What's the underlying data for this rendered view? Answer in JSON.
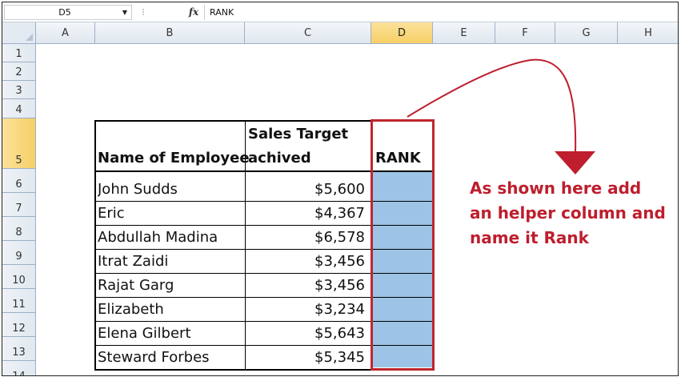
{
  "formula_bar": {
    "cell_reference": "D5",
    "fx_label": "fx",
    "formula": "RANK"
  },
  "columns": [
    "A",
    "B",
    "C",
    "D",
    "E",
    "F",
    "G",
    "H"
  ],
  "selected_column": "D",
  "rows": [
    "1",
    "2",
    "3",
    "4",
    "5",
    "6",
    "7",
    "8",
    "9",
    "10",
    "11",
    "12",
    "13",
    "14"
  ],
  "selected_row": "5",
  "table": {
    "header_name": "Name of Employee",
    "header_sales_line1": "Sales Target",
    "header_sales_line2": "achived",
    "header_rank": "RANK",
    "records": [
      {
        "name": "John Sudds",
        "sales": "$5,600"
      },
      {
        "name": "Eric",
        "sales": "$4,367"
      },
      {
        "name": "Abdullah Madina",
        "sales": "$6,578"
      },
      {
        "name": "Itrat Zaidi",
        "sales": "$3,456"
      },
      {
        "name": "Rajat Garg",
        "sales": "$3,456"
      },
      {
        "name": "Elizabeth",
        "sales": "$3,234"
      },
      {
        "name": "Elena Gilbert",
        "sales": "$5,643"
      },
      {
        "name": "Steward Forbes",
        "sales": "$5,345"
      }
    ]
  },
  "annotation": {
    "line1": "As shown here add",
    "line2": "an helper column and",
    "line3": "name it Rank",
    "color": "#be1e2d"
  },
  "colors": {
    "rank_fill": "#9dc3e6",
    "rank_border": "#c0262e",
    "selected_header": "#f6cf66"
  },
  "icons": {
    "namebox_dropdown": "chevron-down-icon",
    "fx": "function-icon"
  }
}
